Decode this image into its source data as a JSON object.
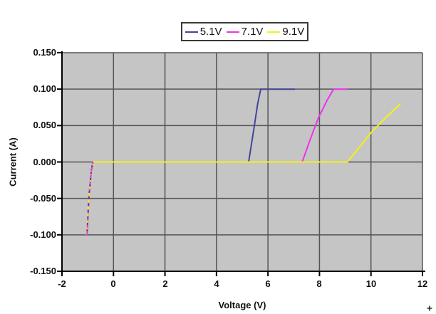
{
  "chart_data": {
    "type": "line",
    "title": "",
    "xlabel": "Voltage (V)",
    "ylabel": "Current (A)",
    "xlim": [
      -2,
      12
    ],
    "ylim": [
      -0.15,
      0.15
    ],
    "grid": true,
    "plot_bg": "#c5c5c5",
    "grid_color": "#555555",
    "axis_color": "#000000",
    "legend_position": "top-center",
    "x_ticks": [
      {
        "label": "-2",
        "value": -2
      },
      {
        "label": "0",
        "value": 0
      },
      {
        "label": "2",
        "value": 2
      },
      {
        "label": "4",
        "value": 4
      },
      {
        "label": "6",
        "value": 6
      },
      {
        "label": "8",
        "value": 8
      },
      {
        "label": "10",
        "value": 10
      },
      {
        "label": "12",
        "value": 12
      }
    ],
    "y_ticks": [
      {
        "label": "0.150",
        "value": 0.15
      },
      {
        "label": "0.100",
        "value": 0.1
      },
      {
        "label": "0.050",
        "value": 0.05
      },
      {
        "label": "0.000",
        "value": 0
      },
      {
        "label": "-0.050",
        "value": -0.05
      },
      {
        "label": "-0.100",
        "value": -0.1
      },
      {
        "label": "-0.150",
        "value": -0.15
      }
    ],
    "series": [
      {
        "name": "5.1V",
        "color": "#44449b",
        "points": [
          [
            -1.03,
            -0.1
          ],
          [
            -0.96,
            -0.05
          ],
          [
            -0.86,
            -0.012
          ],
          [
            -0.8,
            0.0
          ],
          [
            5.25,
            0.0
          ],
          [
            5.45,
            0.045
          ],
          [
            5.6,
            0.08
          ],
          [
            5.72,
            0.1
          ],
          [
            7.05,
            0.1
          ]
        ]
      },
      {
        "name": "7.1V",
        "color": "#ee32ee",
        "points": [
          [
            -1.03,
            -0.1
          ],
          [
            -0.96,
            -0.05
          ],
          [
            -0.86,
            -0.012
          ],
          [
            -0.79,
            0.0
          ],
          [
            7.33,
            0.0
          ],
          [
            7.63,
            0.03
          ],
          [
            7.95,
            0.06
          ],
          [
            8.3,
            0.085
          ],
          [
            8.55,
            0.1
          ],
          [
            9.08,
            0.1
          ]
        ]
      },
      {
        "name": "9.1V",
        "color": "#f2f218",
        "points": [
          [
            -1.04,
            -0.1
          ],
          [
            -0.96,
            -0.05
          ],
          [
            -0.86,
            -0.012
          ],
          [
            -0.78,
            0.0
          ],
          [
            9.08,
            0.0
          ],
          [
            9.5,
            0.018
          ],
          [
            10.0,
            0.04
          ],
          [
            10.55,
            0.06
          ],
          [
            11.15,
            0.08
          ]
        ]
      }
    ]
  },
  "icons": {
    "cursor_mark": "plus-cursor"
  }
}
